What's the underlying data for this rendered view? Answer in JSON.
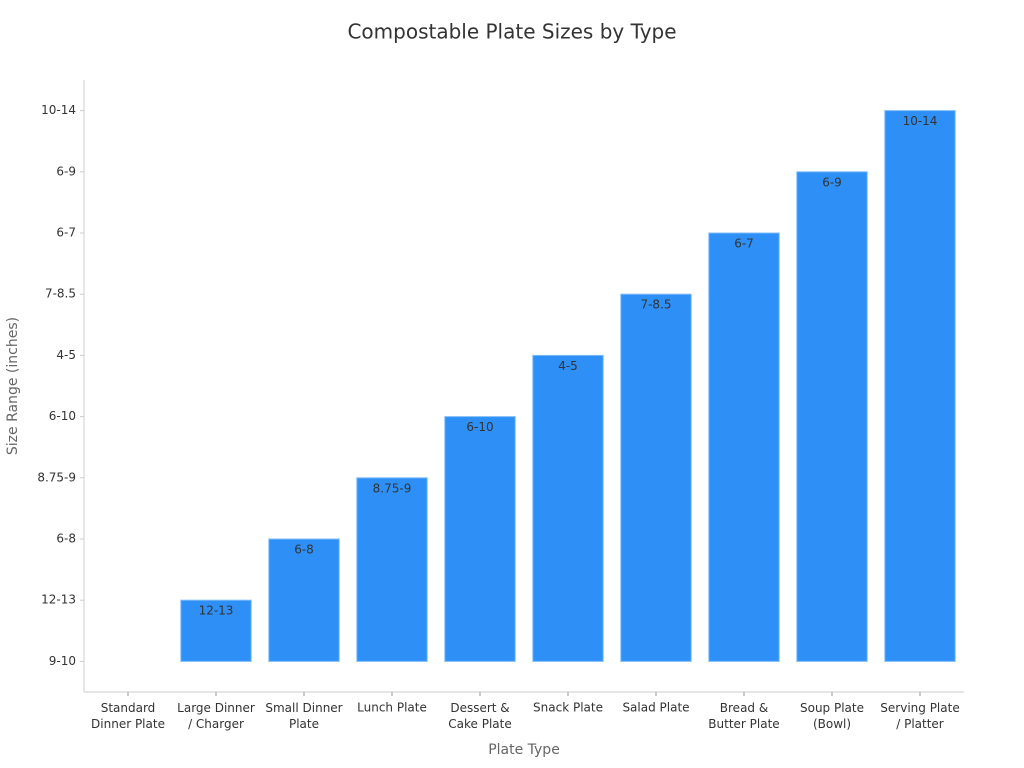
{
  "chart_data": {
    "type": "bar",
    "title": "Compostable Plate Sizes by Type",
    "x_label": "Plate Type",
    "y_label": "Size Range (inches)",
    "categories": [
      "Standard\nDinner Plate",
      "Large Dinner\n/ Charger",
      "Small Dinner\nPlate",
      "Lunch Plate",
      "Dessert &\nCake Plate",
      "Snack Plate",
      "Salad Plate",
      "Bread &\nButter Plate",
      "Soup Plate\n(Bowl)",
      "Serving Plate\n/ Platter"
    ],
    "values": [
      0,
      1,
      2,
      3,
      4,
      5,
      6,
      7,
      8,
      9
    ],
    "value_labels": [
      null,
      "12-13",
      "6-8",
      "8.75-9",
      "6-10",
      "4-5",
      "7-8.5",
      "6-7",
      "6-9",
      "10-14"
    ],
    "color": "#2e90f7",
    "ylim": [
      -0.5,
      9.5
    ],
    "yticks": [
      {
        "value": 0,
        "label": "9-10"
      },
      {
        "value": 1,
        "label": "12-13"
      },
      {
        "value": 2,
        "label": "6-8"
      },
      {
        "value": 3,
        "label": "8.75-9"
      },
      {
        "value": 4,
        "label": "6-10"
      },
      {
        "value": 5,
        "label": "4-5"
      },
      {
        "value": 6,
        "label": "7-8.5"
      },
      {
        "value": 7,
        "label": "6-7"
      },
      {
        "value": 8,
        "label": "6-9"
      },
      {
        "value": 9,
        "label": "10-14"
      }
    ],
    "grid": false
  }
}
